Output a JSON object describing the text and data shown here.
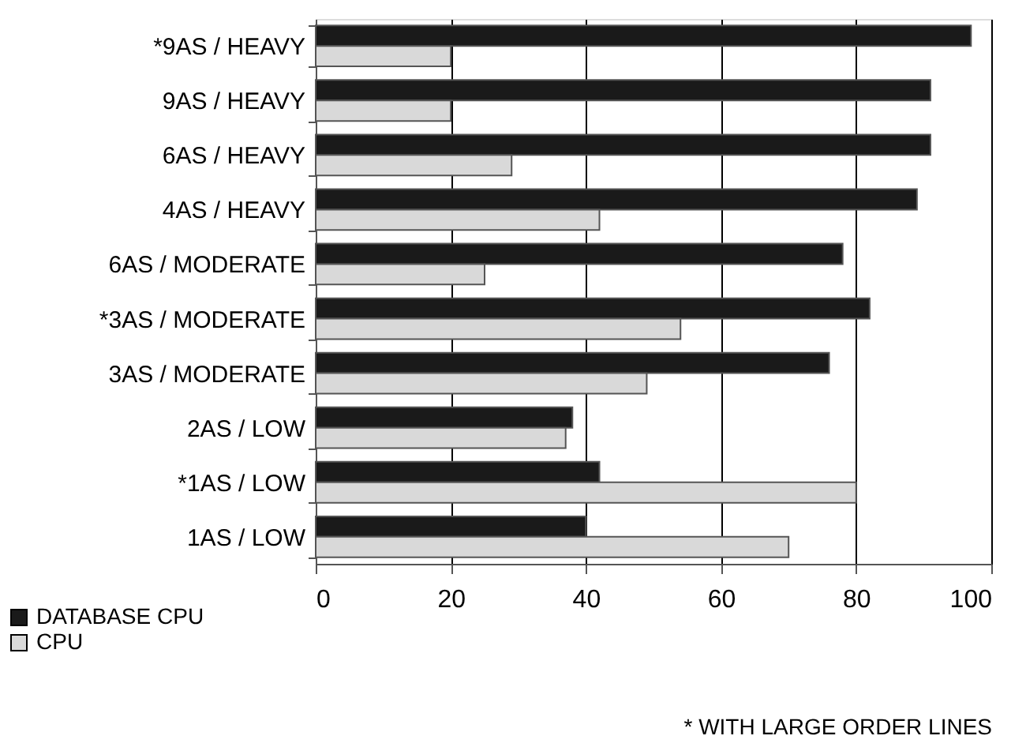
{
  "chart_data": {
    "type": "bar",
    "orientation": "horizontal",
    "categories": [
      "*9AS / HEAVY",
      "9AS / HEAVY",
      "6AS / HEAVY",
      "4AS / HEAVY",
      "6AS / MODERATE",
      "*3AS / MODERATE",
      "3AS / MODERATE",
      "2AS / LOW",
      "*1AS / LOW",
      "1AS / LOW"
    ],
    "series": [
      {
        "name": "DATABASE CPU",
        "color": "#1a1a1a",
        "values": [
          97,
          91,
          91,
          89,
          78,
          82,
          76,
          38,
          42,
          40
        ]
      },
      {
        "name": "CPU",
        "color": "#d9d9d9",
        "values": [
          20,
          20,
          29,
          42,
          25,
          54,
          49,
          37,
          80,
          70
        ]
      }
    ],
    "xlim": [
      0,
      100
    ],
    "xticks": [
      0,
      20,
      40,
      60,
      80,
      100
    ],
    "grid": "x",
    "legend": "bottom left",
    "annotations": [
      "* WITH LARGE ORDER LINES"
    ]
  }
}
